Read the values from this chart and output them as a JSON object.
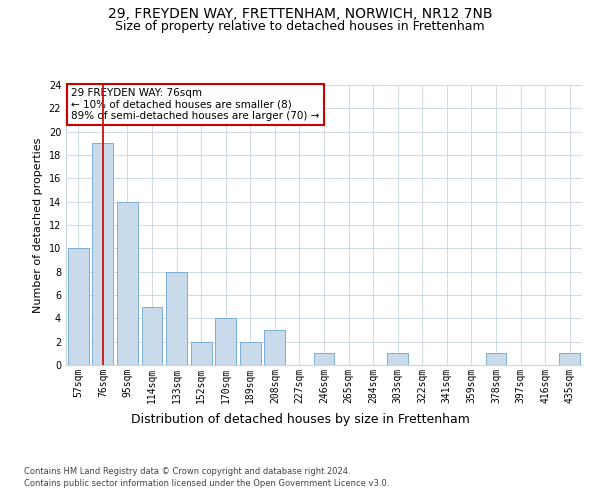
{
  "title1": "29, FREYDEN WAY, FRETTENHAM, NORWICH, NR12 7NB",
  "title2": "Size of property relative to detached houses in Frettenham",
  "xlabel": "Distribution of detached houses by size in Frettenham",
  "ylabel": "Number of detached properties",
  "categories": [
    "57sqm",
    "76sqm",
    "95sqm",
    "114sqm",
    "133sqm",
    "152sqm",
    "170sqm",
    "189sqm",
    "208sqm",
    "227sqm",
    "246sqm",
    "265sqm",
    "284sqm",
    "303sqm",
    "322sqm",
    "341sqm",
    "359sqm",
    "378sqm",
    "397sqm",
    "416sqm",
    "435sqm"
  ],
  "values": [
    10,
    19,
    14,
    5,
    8,
    2,
    4,
    2,
    3,
    0,
    1,
    0,
    0,
    1,
    0,
    0,
    0,
    1,
    0,
    0,
    1
  ],
  "bar_color": "#c9daea",
  "bar_edge_color": "#7bafd4",
  "red_line_index": 1,
  "ylim": [
    0,
    24
  ],
  "yticks": [
    0,
    2,
    4,
    6,
    8,
    10,
    12,
    14,
    16,
    18,
    20,
    22,
    24
  ],
  "annotation_title": "29 FREYDEN WAY: 76sqm",
  "annotation_line1": "← 10% of detached houses are smaller (8)",
  "annotation_line2": "89% of semi-detached houses are larger (70) →",
  "annotation_box_color": "#ffffff",
  "annotation_box_edge": "#cc0000",
  "footer1": "Contains HM Land Registry data © Crown copyright and database right 2024.",
  "footer2": "Contains public sector information licensed under the Open Government Licence v3.0.",
  "bg_color": "#ffffff",
  "grid_color": "#c8d4e0",
  "title1_fontsize": 10,
  "title2_fontsize": 9,
  "ylabel_fontsize": 8,
  "xlabel_fontsize": 9,
  "tick_fontsize": 7,
  "footer_fontsize": 6,
  "annot_fontsize": 7.5
}
